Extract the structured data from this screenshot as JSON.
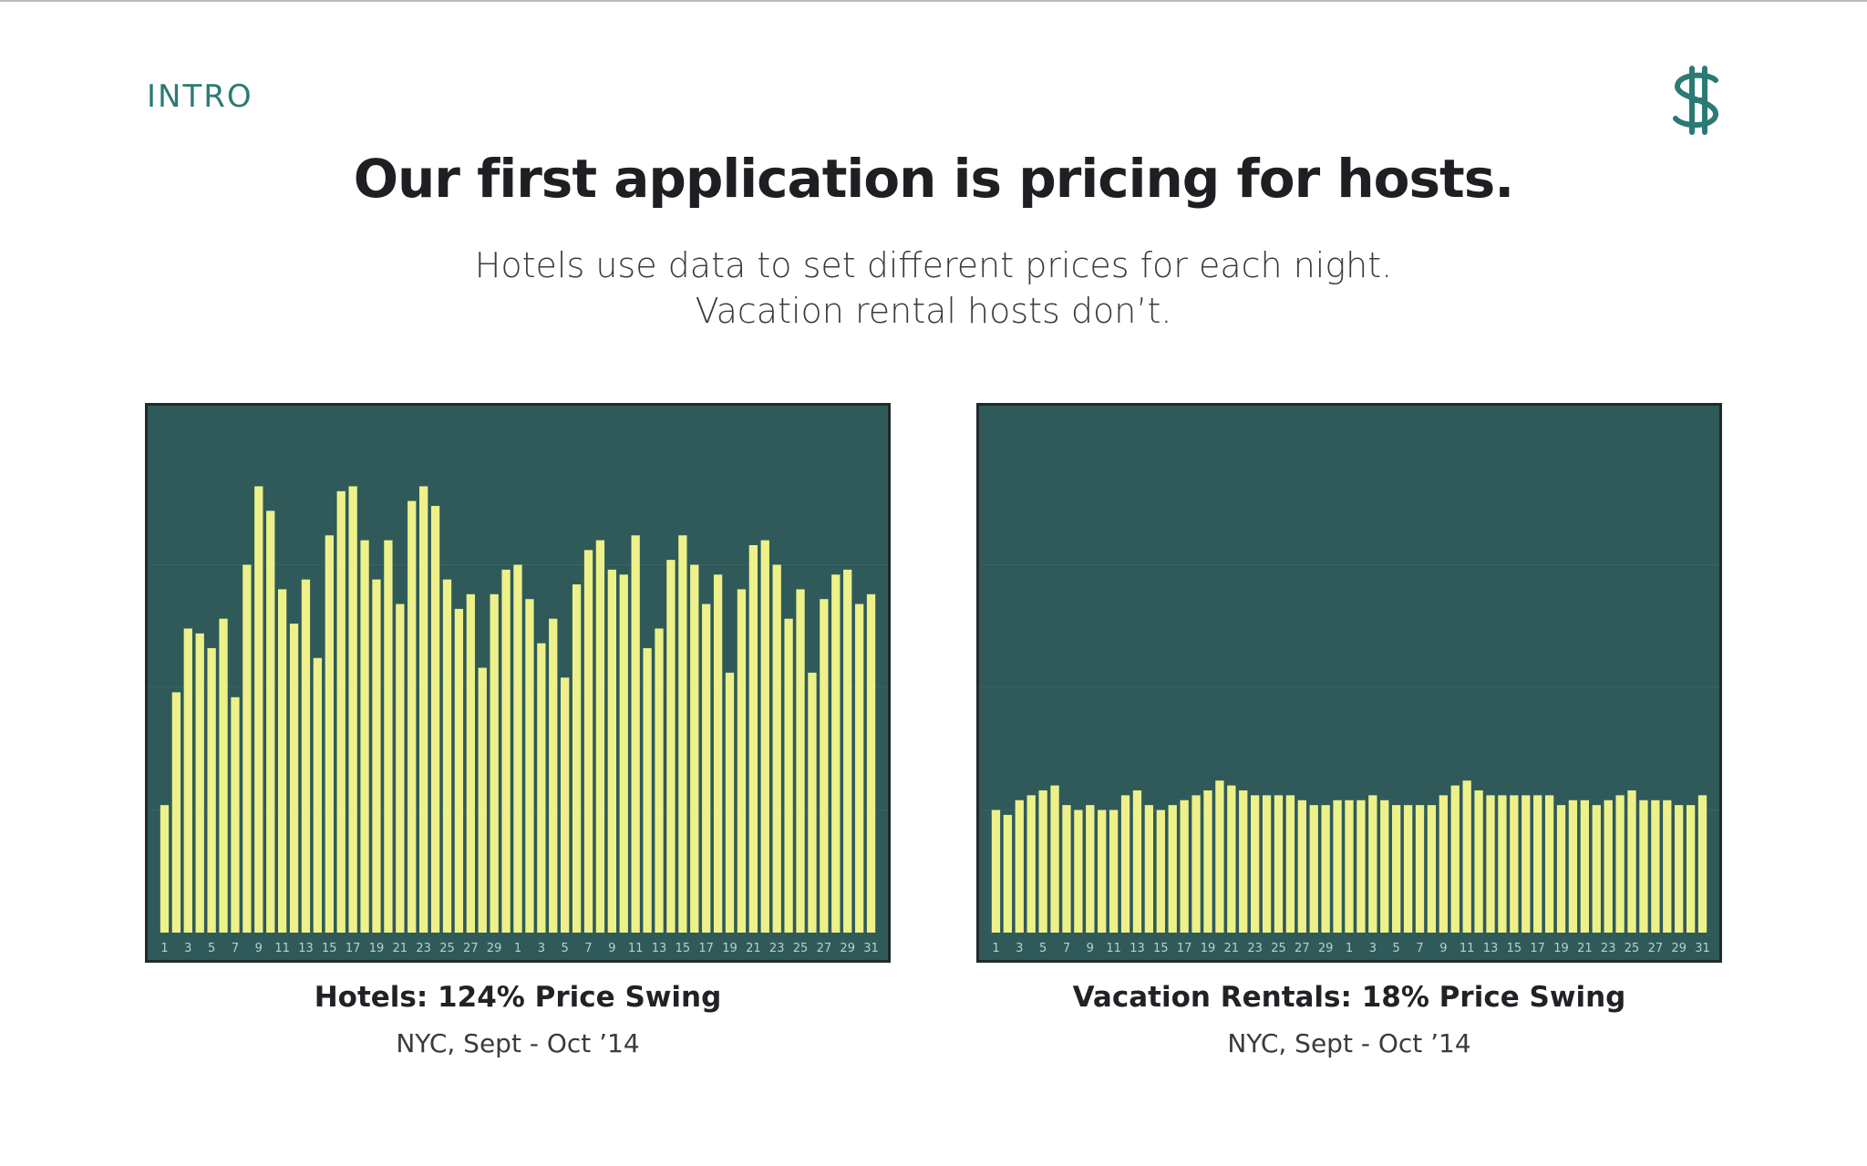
{
  "header": {
    "section_label": "INTRO",
    "logo": "dollar-sh-monogram-icon",
    "title": "Our first application is pricing for hosts.",
    "subtitle_line1": "Hotels use data to set different prices for each night.",
    "subtitle_line2": "Vacation rental hosts don’t."
  },
  "colors": {
    "accent": "#2b7a74",
    "chart_bg": "#2f5a59",
    "bar": "#eef08a",
    "tick": "#b9cfcf"
  },
  "chart_data": [
    {
      "type": "bar",
      "title": "Hotels: 124% Price Swing",
      "subtitle": "NYC, Sept - Oct ’14",
      "x_tick_labels": [
        "1",
        "3",
        "5",
        "7",
        "9",
        "11",
        "13",
        "15",
        "17",
        "19",
        "21",
        "23",
        "25",
        "27",
        "29",
        "1",
        "3",
        "5",
        "7",
        "9",
        "11",
        "13",
        "15",
        "17",
        "19",
        "21",
        "23",
        "25",
        "27",
        "29",
        "31"
      ],
      "ylim": [
        0,
        100
      ],
      "values": [
        26,
        49,
        62,
        61,
        58,
        64,
        48,
        75,
        91,
        86,
        70,
        63,
        72,
        56,
        81,
        90,
        91,
        80,
        72,
        80,
        67,
        88,
        91,
        87,
        72,
        66,
        69,
        54,
        69,
        74,
        75,
        68,
        59,
        64,
        52,
        71,
        78,
        80,
        74,
        73,
        81,
        58,
        62,
        76,
        81,
        75,
        67,
        73,
        53,
        70,
        79,
        80,
        75,
        64,
        70,
        53,
        68,
        73,
        74,
        67,
        69
      ]
    },
    {
      "type": "bar",
      "title": "Vacation Rentals: 18% Price Swing",
      "subtitle": "NYC, Sept - Oct ’14",
      "x_tick_labels": [
        "1",
        "3",
        "5",
        "7",
        "9",
        "11",
        "13",
        "15",
        "17",
        "19",
        "21",
        "23",
        "25",
        "27",
        "29",
        "1",
        "3",
        "5",
        "7",
        "9",
        "11",
        "13",
        "15",
        "17",
        "19",
        "21",
        "23",
        "25",
        "27",
        "29",
        "31"
      ],
      "ylim": [
        0,
        100
      ],
      "values": [
        25,
        24,
        27,
        28,
        29,
        30,
        26,
        25,
        26,
        25,
        25,
        28,
        29,
        26,
        25,
        26,
        27,
        28,
        29,
        31,
        30,
        29,
        28,
        28,
        28,
        28,
        27,
        26,
        26,
        27,
        27,
        27,
        28,
        27,
        26,
        26,
        26,
        26,
        28,
        30,
        31,
        29,
        28,
        28,
        28,
        28,
        28,
        28,
        26,
        27,
        27,
        26,
        27,
        28,
        29,
        27,
        27,
        27,
        26,
        26,
        28
      ]
    }
  ]
}
